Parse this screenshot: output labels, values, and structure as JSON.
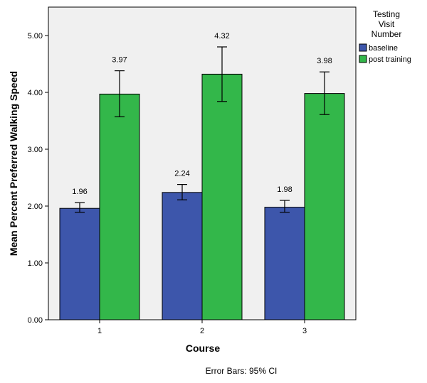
{
  "chart_data": {
    "type": "bar",
    "title": "",
    "xlabel": "Course",
    "ylabel": "Mean Percent Preferred Walking Speed",
    "categories": [
      "1",
      "2",
      "3"
    ],
    "ylim": [
      0,
      5.5
    ],
    "yticks": [
      "0.00",
      "1.00",
      "2.00",
      "3.00",
      "4.00",
      "5.00"
    ],
    "yticks_values": [
      0,
      1,
      2,
      3,
      4,
      5
    ],
    "grid": false,
    "legend": {
      "title_lines": [
        "Testing",
        "Visit",
        "Number"
      ],
      "placement": "top-right, outside plot"
    },
    "series": [
      {
        "name": "baseline",
        "color": "#3d56ab",
        "values": [
          1.96,
          2.24,
          1.98
        ],
        "labels": [
          "1.96",
          "2.24",
          "1.98"
        ],
        "ci_low": [
          1.89,
          2.11,
          1.89
        ],
        "ci_high": [
          2.06,
          2.38,
          2.1
        ]
      },
      {
        "name": "post training",
        "color": "#33b74a",
        "values": [
          3.97,
          4.32,
          3.98
        ],
        "labels": [
          "3.97",
          "4.32",
          "3.98"
        ],
        "ci_low": [
          3.57,
          3.84,
          3.61
        ],
        "ci_high": [
          4.38,
          4.8,
          4.36
        ]
      }
    ],
    "footnote": "Error Bars: 95% CI",
    "plot_background": "#f0f0f0"
  }
}
